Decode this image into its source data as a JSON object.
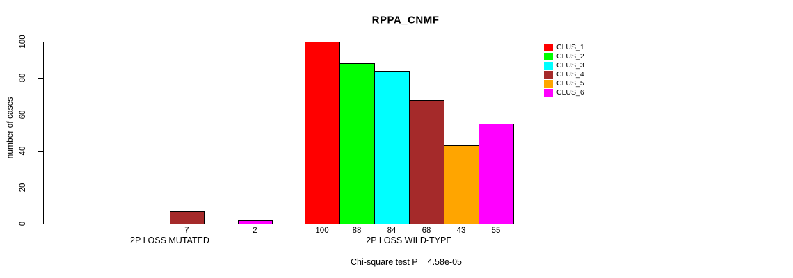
{
  "chart_data": {
    "type": "bar",
    "title": "RPPA_CNMF",
    "ylabel": "number of cases",
    "ylim": [
      0,
      100
    ],
    "yticks": [
      0,
      20,
      40,
      60,
      80,
      100
    ],
    "grid": false,
    "legend_position": "right",
    "series": [
      {
        "name": "CLUS_1",
        "color": "#FF0000"
      },
      {
        "name": "CLUS_2",
        "color": "#00FF00"
      },
      {
        "name": "CLUS_3",
        "color": "#00FFFF"
      },
      {
        "name": "CLUS_4",
        "color": "#A52A2A"
      },
      {
        "name": "CLUS_5",
        "color": "#FFA500"
      },
      {
        "name": "CLUS_6",
        "color": "#FF00FF"
      }
    ],
    "categories": [
      "2P LOSS MUTATED",
      "2P LOSS WILD-TYPE"
    ],
    "groups": [
      {
        "label": "2P LOSS MUTATED",
        "values": [
          0,
          0,
          0,
          7,
          0,
          2
        ]
      },
      {
        "label": "2P LOSS WILD-TYPE",
        "values": [
          100,
          88,
          84,
          68,
          43,
          55
        ]
      }
    ],
    "value_labels_shown": "nonzero-only"
  },
  "footer": {
    "stat_text": "Chi-square test P = 4.58e-05"
  }
}
